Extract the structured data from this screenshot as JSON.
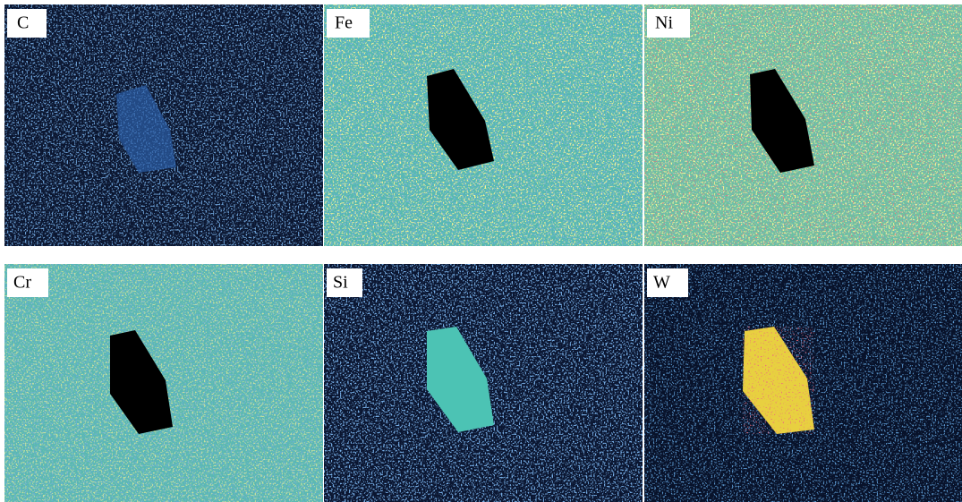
{
  "panels": [
    {
      "label": "C"
    },
    {
      "label": "Fe"
    },
    {
      "label": "Ni"
    },
    {
      "label": "Cr"
    },
    {
      "label": "Si"
    },
    {
      "label": "W"
    }
  ]
}
